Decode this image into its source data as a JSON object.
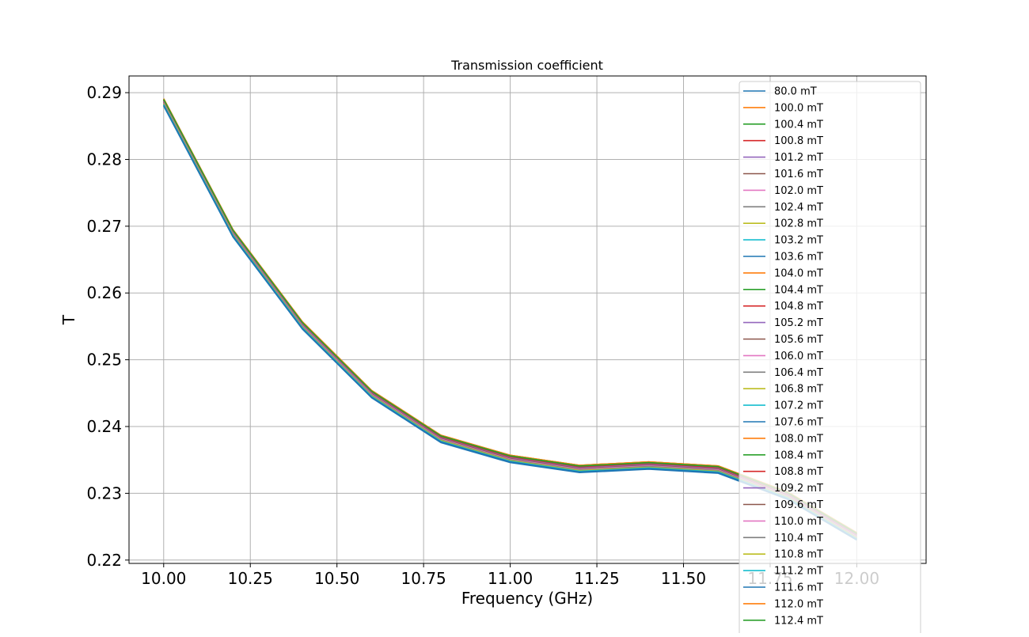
{
  "chart_data": {
    "type": "line",
    "title": "Transmission coefficient",
    "xlabel": "Frequency (GHz)",
    "ylabel": "T",
    "xlim": [
      9.9,
      12.2
    ],
    "ylim": [
      0.2195,
      0.2925
    ],
    "grid": true,
    "legend_position": "top-right",
    "xticks": [
      10.0,
      10.25,
      10.5,
      10.75,
      11.0,
      11.25,
      11.5,
      11.75,
      12.0
    ],
    "xtick_labels": [
      "10.00",
      "10.25",
      "10.50",
      "10.75",
      "11.00",
      "11.25",
      "11.50",
      "11.75",
      "12.00"
    ],
    "yticks": [
      0.22,
      0.23,
      0.24,
      0.25,
      0.26,
      0.27,
      0.28,
      0.29
    ],
    "ytick_labels": [
      "0.22",
      "0.23",
      "0.24",
      "0.25",
      "0.26",
      "0.27",
      "0.28",
      "0.29"
    ],
    "x": [
      10.0,
      10.2,
      10.4,
      10.6,
      10.8,
      11.0,
      11.2,
      11.4,
      11.6,
      11.8,
      12.0
    ],
    "colors": [
      "#1f77b4",
      "#ff7f0e",
      "#2ca02c",
      "#d62728",
      "#9467bd",
      "#8c564b",
      "#e377c2",
      "#7f7f7f",
      "#bcbd22",
      "#17becf"
    ],
    "series": [
      {
        "name": "80.0 mT",
        "values": [
          0.289,
          0.2693,
          0.2556,
          0.2453,
          0.2386,
          0.2356,
          0.2341,
          0.2346,
          0.234,
          0.2301,
          0.224
        ]
      },
      {
        "name": "100.0 mT",
        "values": [
          0.2891,
          0.2695,
          0.2557,
          0.2454,
          0.2387,
          0.2357,
          0.2342,
          0.2347,
          0.2341,
          0.2302,
          0.2241
        ]
      },
      {
        "name": "100.4 mT",
        "values": [
          0.2889,
          0.2693,
          0.2555,
          0.2452,
          0.2385,
          0.2355,
          0.234,
          0.2345,
          0.2339,
          0.23,
          0.2239
        ]
      },
      {
        "name": "100.8 mT",
        "values": [
          0.2889,
          0.2692,
          0.2555,
          0.2452,
          0.2385,
          0.2355,
          0.234,
          0.2345,
          0.2339,
          0.23,
          0.2239
        ]
      },
      {
        "name": "101.2 mT",
        "values": [
          0.2888,
          0.2692,
          0.2554,
          0.2451,
          0.2384,
          0.2354,
          0.2339,
          0.2344,
          0.2338,
          0.2299,
          0.2238
        ]
      },
      {
        "name": "101.6 mT",
        "values": [
          0.2888,
          0.2691,
          0.2554,
          0.2451,
          0.2384,
          0.2354,
          0.2339,
          0.2344,
          0.2338,
          0.2299,
          0.2238
        ]
      },
      {
        "name": "102.0 mT",
        "values": [
          0.2887,
          0.2691,
          0.2553,
          0.245,
          0.2383,
          0.2353,
          0.2338,
          0.2343,
          0.2337,
          0.2298,
          0.2237
        ]
      },
      {
        "name": "102.4 mT",
        "values": [
          0.2887,
          0.269,
          0.2553,
          0.245,
          0.2383,
          0.2353,
          0.2338,
          0.2343,
          0.2337,
          0.2298,
          0.2237
        ]
      },
      {
        "name": "102.8 mT",
        "values": [
          0.2886,
          0.269,
          0.2552,
          0.2449,
          0.2382,
          0.2352,
          0.2337,
          0.2342,
          0.2336,
          0.2297,
          0.2236
        ]
      },
      {
        "name": "103.2 mT",
        "values": [
          0.2886,
          0.2689,
          0.2552,
          0.2449,
          0.2382,
          0.2352,
          0.2337,
          0.2342,
          0.2336,
          0.2297,
          0.2236
        ]
      },
      {
        "name": "103.6 mT",
        "values": [
          0.2885,
          0.2689,
          0.2551,
          0.2448,
          0.2381,
          0.2351,
          0.2336,
          0.2341,
          0.2335,
          0.2296,
          0.2235
        ]
      },
      {
        "name": "104.0 mT",
        "values": [
          0.2885,
          0.2688,
          0.2551,
          0.2448,
          0.2381,
          0.2351,
          0.2336,
          0.2341,
          0.2335,
          0.2296,
          0.2235
        ]
      },
      {
        "name": "104.4 mT",
        "values": [
          0.2884,
          0.2688,
          0.255,
          0.2447,
          0.238,
          0.235,
          0.2335,
          0.234,
          0.2334,
          0.2295,
          0.2234
        ]
      },
      {
        "name": "104.8 mT",
        "values": [
          0.2884,
          0.2687,
          0.255,
          0.2447,
          0.238,
          0.235,
          0.2335,
          0.234,
          0.2334,
          0.2295,
          0.2234
        ]
      },
      {
        "name": "105.2 mT",
        "values": [
          0.2883,
          0.2687,
          0.2549,
          0.2446,
          0.2379,
          0.2349,
          0.2334,
          0.2339,
          0.2333,
          0.2294,
          0.2233
        ]
      },
      {
        "name": "105.6 mT",
        "values": [
          0.2883,
          0.2686,
          0.2549,
          0.2446,
          0.2379,
          0.2349,
          0.2334,
          0.2339,
          0.2333,
          0.2294,
          0.2233
        ]
      },
      {
        "name": "106.0 mT",
        "values": [
          0.2882,
          0.2686,
          0.2548,
          0.2445,
          0.2378,
          0.2348,
          0.2333,
          0.2338,
          0.2332,
          0.2293,
          0.2232
        ]
      },
      {
        "name": "106.4 mT",
        "values": [
          0.2882,
          0.2685,
          0.2548,
          0.2445,
          0.2378,
          0.2348,
          0.2333,
          0.2338,
          0.2332,
          0.2293,
          0.2232
        ]
      },
      {
        "name": "106.8 mT",
        "values": [
          0.2881,
          0.2685,
          0.2547,
          0.2444,
          0.2377,
          0.2347,
          0.2332,
          0.2337,
          0.2331,
          0.2292,
          0.2231
        ]
      },
      {
        "name": "107.2 mT",
        "values": [
          0.2881,
          0.2684,
          0.2547,
          0.2444,
          0.2377,
          0.2347,
          0.2332,
          0.2337,
          0.2331,
          0.2292,
          0.2231
        ]
      },
      {
        "name": "107.6 mT",
        "values": [
          0.288,
          0.2684,
          0.2546,
          0.2443,
          0.2376,
          0.2346,
          0.2331,
          0.2336,
          0.233,
          0.2291,
          0.223
        ]
      },
      {
        "name": "108.0 mT",
        "values": [
          0.2891,
          0.2695,
          0.2557,
          0.2454,
          0.2387,
          0.2357,
          0.2342,
          0.2347,
          0.2341,
          0.2302,
          0.2241
        ]
      },
      {
        "name": "108.4 mT",
        "values": [
          0.2889,
          0.2693,
          0.2555,
          0.2452,
          0.2385,
          0.2355,
          0.234,
          0.2345,
          0.2339,
          0.23,
          0.2239
        ]
      },
      {
        "name": "108.8 mT",
        "values": [
          0.2888,
          0.2692,
          0.2554,
          0.2451,
          0.2384,
          0.2354,
          0.2339,
          0.2344,
          0.2338,
          0.2299,
          0.2238
        ]
      },
      {
        "name": "109.2 mT",
        "values": [
          0.2887,
          0.2691,
          0.2553,
          0.245,
          0.2383,
          0.2353,
          0.2338,
          0.2343,
          0.2337,
          0.2298,
          0.2237
        ]
      },
      {
        "name": "109.6 mT",
        "values": [
          0.2886,
          0.269,
          0.2552,
          0.2449,
          0.2382,
          0.2352,
          0.2337,
          0.2342,
          0.2336,
          0.2297,
          0.2236
        ]
      },
      {
        "name": "110.0 mT",
        "values": [
          0.2885,
          0.2689,
          0.2551,
          0.2448,
          0.2381,
          0.2351,
          0.2336,
          0.2341,
          0.2335,
          0.2296,
          0.2235
        ]
      },
      {
        "name": "110.4 mT",
        "values": [
          0.2884,
          0.2688,
          0.255,
          0.2447,
          0.238,
          0.235,
          0.2335,
          0.234,
          0.2334,
          0.2295,
          0.2234
        ]
      },
      {
        "name": "110.8 mT",
        "values": [
          0.2883,
          0.2687,
          0.2549,
          0.2446,
          0.2379,
          0.2349,
          0.2334,
          0.2339,
          0.2333,
          0.2294,
          0.2233
        ]
      },
      {
        "name": "111.2 mT",
        "values": [
          0.2882,
          0.2686,
          0.2548,
          0.2445,
          0.2378,
          0.2348,
          0.2333,
          0.2338,
          0.2332,
          0.2293,
          0.2232
        ]
      },
      {
        "name": "111.6 mT",
        "values": [
          0.2881,
          0.2685,
          0.2547,
          0.2444,
          0.2377,
          0.2347,
          0.2332,
          0.2337,
          0.2331,
          0.2292,
          0.2231
        ]
      },
      {
        "name": "112.0 mT",
        "values": [
          0.2891,
          0.2695,
          0.2557,
          0.2454,
          0.2387,
          0.2357,
          0.2342,
          0.2347,
          0.2341,
          0.2302,
          0.2241
        ]
      },
      {
        "name": "112.4 mT",
        "values": [
          0.289,
          0.2694,
          0.2556,
          0.2453,
          0.2386,
          0.2356,
          0.2341,
          0.2346,
          0.234,
          0.2301,
          0.224
        ]
      }
    ]
  }
}
